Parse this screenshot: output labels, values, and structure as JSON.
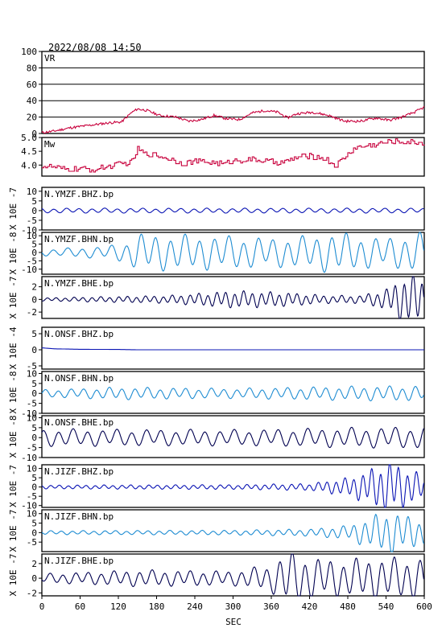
{
  "header": {
    "timestamp": "2022/08/08  14:50"
  },
  "colors": {
    "frame": "#000000",
    "vr_mw": "#c8003c",
    "vertical": "#0a14b4",
    "horizontal": "#1e8cd2",
    "east": "#000050"
  },
  "chart_data": {
    "type": "line",
    "xlabel": "SEC",
    "xlim": [
      0,
      600
    ],
    "xticks": [
      "0",
      "60",
      "120",
      "180",
      "240",
      "300",
      "360",
      "420",
      "480",
      "540",
      "600"
    ],
    "panels": [
      {
        "id": "vr",
        "label": "VR",
        "ylabel": "",
        "ylim": [
          0,
          100
        ],
        "yticks": [
          "100",
          "80",
          "60",
          "40",
          "20",
          "0"
        ],
        "grid": true,
        "color": "vr_mw",
        "style": "noisy",
        "series": {
          "name": "VR",
          "x": [
            0,
            20,
            45,
            75,
            105,
            125,
            140,
            150,
            165,
            185,
            210,
            230,
            250,
            270,
            290,
            310,
            330,
            350,
            370,
            385,
            400,
            425,
            450,
            475,
            500,
            525,
            545,
            565,
            585,
            600
          ],
          "y": [
            1,
            3,
            7,
            10,
            13,
            14,
            25,
            30,
            28,
            22,
            20,
            15,
            17,
            22,
            18,
            17,
            25,
            28,
            26,
            19,
            24,
            26,
            22,
            15,
            15,
            19,
            16,
            20,
            26,
            32
          ]
        }
      },
      {
        "id": "mw",
        "label": "Mw",
        "ylabel": "",
        "ylim": [
          3.6,
          5.0
        ],
        "yticks": [
          "5.0",
          "4.5",
          "4.0"
        ],
        "grid": false,
        "color": "vr_mw",
        "style": "step",
        "series": {
          "name": "Mw",
          "x": [
            0,
            20,
            35,
            60,
            80,
            100,
            115,
            130,
            140,
            150,
            160,
            175,
            200,
            220,
            240,
            260,
            285,
            300,
            330,
            360,
            380,
            400,
            420,
            445,
            460,
            490,
            510,
            530,
            550,
            570,
            600
          ],
          "y": [
            3.97,
            3.92,
            3.84,
            3.87,
            3.82,
            3.94,
            4.0,
            4.06,
            4.09,
            4.58,
            4.42,
            4.38,
            4.23,
            4.06,
            4.14,
            4.11,
            4.04,
            4.16,
            4.2,
            4.12,
            4.09,
            4.28,
            4.34,
            4.22,
            3.96,
            4.62,
            4.7,
            4.78,
            4.86,
            4.84,
            4.8
          ]
        }
      },
      {
        "id": "ymz",
        "label": "N.YMZF.BHZ.bp",
        "ylabel": "X 10E -7",
        "ylim": [
          -10,
          12
        ],
        "yticks": [
          "10",
          "5",
          "0",
          "-5",
          "-10"
        ],
        "grid": false,
        "color": "vertical",
        "style": "wave",
        "series": {
          "name": "N.YMZF.BHZ.bp",
          "x": [
            0,
            600
          ],
          "y": [
            1.0,
            1.0
          ]
        }
      },
      {
        "id": "ymn",
        "label": "N.YMZF.BHN.bp",
        "ylabel": "X 10E -8",
        "ylim": [
          -13,
          12
        ],
        "yticks": [
          "10",
          "5",
          "0",
          "-5",
          "-10"
        ],
        "grid": false,
        "color": "horizontal",
        "style": "wave",
        "series": {
          "name": "N.YMZF.BHN.bp",
          "x": [
            0,
            100,
            130,
            150,
            220,
            300,
            360,
            420,
            460,
            500,
            540,
            580,
            600
          ],
          "y": [
            1.5,
            3,
            5,
            9,
            8.5,
            8,
            7,
            8,
            10,
            8,
            7,
            9,
            10
          ]
        }
      },
      {
        "id": "yme",
        "label": "N.YMZF.BHE.bp",
        "ylabel": "X 10E -7",
        "ylim": [
          -3,
          3.6
        ],
        "yticks": [
          "2",
          "0",
          "-2"
        ],
        "grid": false,
        "color": "east",
        "style": "wave",
        "series": {
          "name": "N.YMZF.BHE.bp",
          "x": [
            0,
            200,
            300,
            380,
            450,
            500,
            540,
            570,
            600
          ],
          "y": [
            0.2,
            0.5,
            1.1,
            0.9,
            0.5,
            0.5,
            1.3,
            3.1,
            3.0
          ]
        }
      },
      {
        "id": "onz",
        "label": "N.ONSF.BHZ.bp",
        "ylabel": "X 10E -4",
        "ylim": [
          -6,
          7
        ],
        "yticks": [
          "5",
          "0",
          "-5"
        ],
        "grid": false,
        "color": "vertical",
        "style": "ramp",
        "series": {
          "name": "N.ONSF.BHZ.bp",
          "x": [
            0,
            20,
            60,
            120,
            150,
            600
          ],
          "y": [
            0.6,
            0.3,
            0.15,
            0.1,
            0,
            0
          ]
        }
      },
      {
        "id": "onn",
        "label": "N.ONSF.BHN.bp",
        "ylabel": "X 10E -8",
        "ylim": [
          -10,
          11
        ],
        "yticks": [
          "10",
          "5",
          "0",
          "-5",
          "-10"
        ],
        "grid": false,
        "color": "horizontal",
        "style": "wave",
        "series": {
          "name": "N.ONSF.BHN.bp",
          "x": [
            0,
            120,
            300,
            420,
            540,
            600
          ],
          "y": [
            1.5,
            2.5,
            2.0,
            2.6,
            3.0,
            3.0
          ]
        }
      },
      {
        "id": "one",
        "label": "N.ONSF.BHE.bp",
        "ylabel": "X 10E -8",
        "ylim": [
          -10,
          11
        ],
        "yticks": [
          "10",
          "5",
          "0",
          "-5",
          "-10"
        ],
        "grid": false,
        "color": "east",
        "style": "wave",
        "series": {
          "name": "N.ONSF.BHE.bp",
          "x": [
            0,
            300,
            600
          ],
          "y": [
            3.5,
            3.2,
            4.5
          ]
        }
      },
      {
        "id": "jiz",
        "label": "N.JIZF.BHZ.bp",
        "ylabel": "X 10E -7",
        "ylim": [
          -11,
          12
        ],
        "yticks": [
          "10",
          "5",
          "0",
          "-5",
          "-10"
        ],
        "grid": false,
        "color": "vertical",
        "style": "wave",
        "series": {
          "name": "N.JIZF.BHZ.bp",
          "x": [
            0,
            300,
            420,
            480,
            510,
            545,
            575,
            600
          ],
          "y": [
            0.8,
            1.0,
            1.5,
            4.0,
            7.0,
            11.5,
            8.0,
            5.0
          ]
        }
      },
      {
        "id": "jin",
        "label": "N.JIZF.BHN.bp",
        "ylabel": "X 10E -7",
        "ylim": [
          -10,
          12
        ],
        "yticks": [
          "10",
          "5",
          "0",
          "-5"
        ],
        "grid": false,
        "color": "horizontal",
        "style": "wave",
        "series": {
          "name": "N.JIZF.BHN.bp",
          "x": [
            0,
            300,
            420,
            480,
            510,
            545,
            575,
            600
          ],
          "y": [
            0.8,
            1.0,
            1.5,
            3.0,
            6.0,
            9.5,
            7.0,
            5.5
          ]
        }
      },
      {
        "id": "jie",
        "label": "N.JIZF.BHE.bp",
        "ylabel": "X 10E -7",
        "ylim": [
          -2.4,
          3.3
        ],
        "yticks": [
          "2",
          "0",
          "-2"
        ],
        "grid": false,
        "color": "east",
        "style": "wave",
        "series": {
          "name": "N.JIZF.BHE.bp",
          "x": [
            0,
            150,
            300,
            360,
            385,
            430,
            470,
            520,
            600
          ],
          "y": [
            0.5,
            0.9,
            0.8,
            1.5,
            3.0,
            2.2,
            2.0,
            2.3,
            2.2
          ]
        }
      }
    ]
  }
}
